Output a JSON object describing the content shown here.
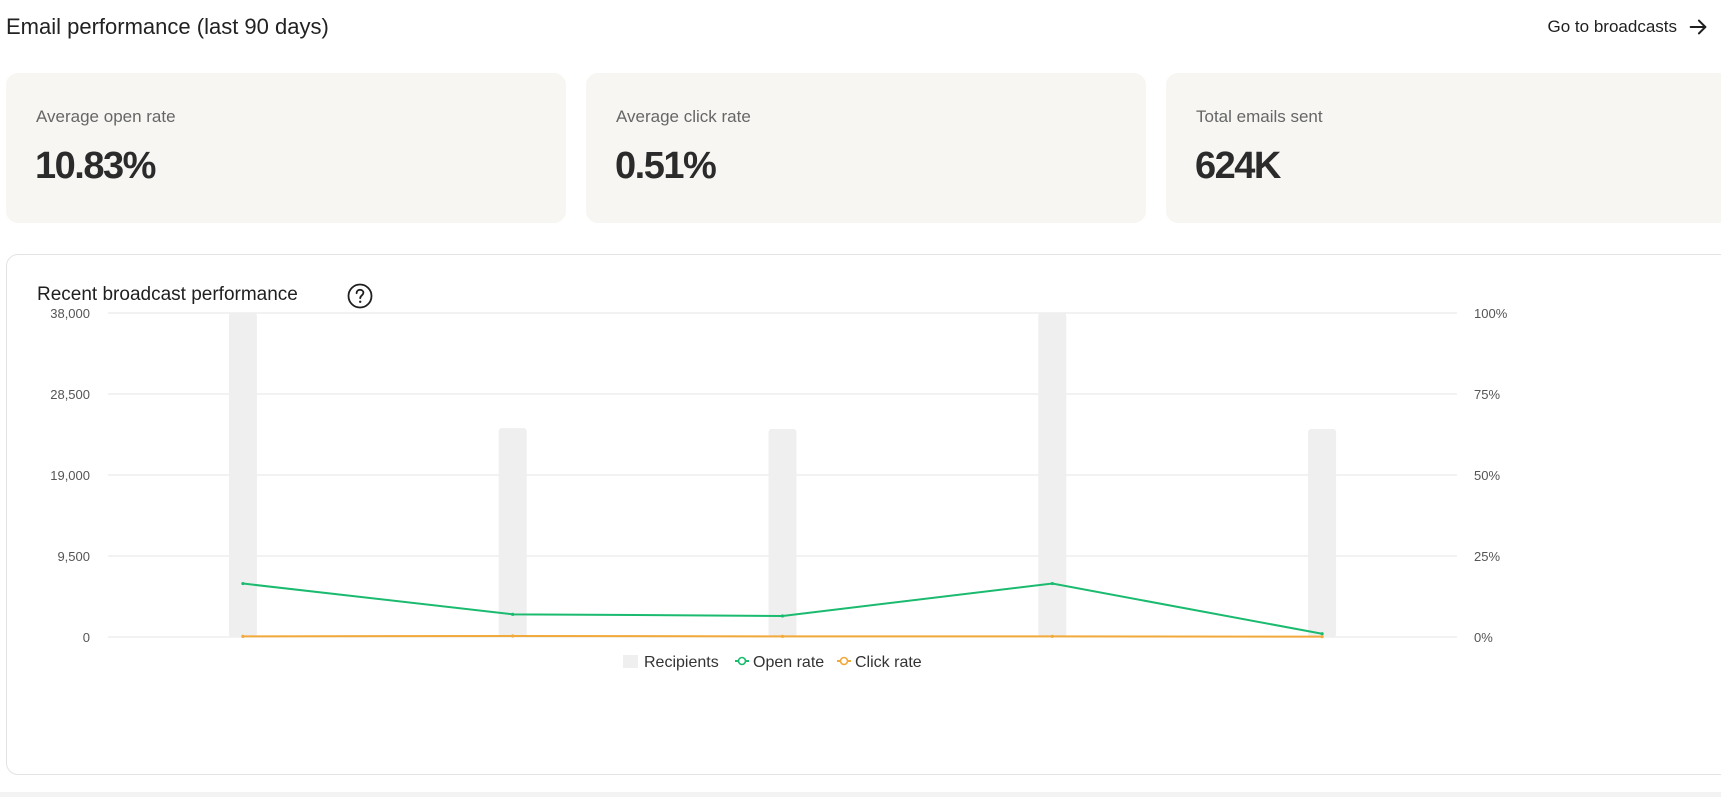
{
  "header": {
    "title": "Email performance (last 90 days)",
    "go_link": "Go to broadcasts",
    "arrow_icon": "arrow-right-icon"
  },
  "stats": [
    {
      "label": "Average open rate",
      "value": "10.83%"
    },
    {
      "label": "Average click rate",
      "value": "0.51%"
    },
    {
      "label": "Total emails sent",
      "value": "624K"
    }
  ],
  "chart_card": {
    "title": "Recent broadcast performance",
    "help_icon": "question-circle-icon"
  },
  "colors": {
    "bar": "#efefef",
    "open_rate": "#1aba6f",
    "click_rate": "#f2a93b",
    "grid": "#e6e6e6"
  },
  "chart_data": {
    "type": "bar",
    "categories": [
      "",
      "",
      "",
      "",
      ""
    ],
    "series": [
      {
        "name": "Recipients",
        "type": "bar",
        "axis": "left",
        "values": [
          38000,
          24500,
          24400,
          38000,
          24400
        ]
      },
      {
        "name": "Open rate",
        "type": "line",
        "axis": "right",
        "values": [
          16.5,
          7,
          6.5,
          16.5,
          1
        ]
      },
      {
        "name": "Click rate",
        "type": "line",
        "axis": "right",
        "values": [
          0.2,
          0.3,
          0.2,
          0.2,
          0.1
        ]
      }
    ],
    "y_left": {
      "ticks": [
        "38,000",
        "28,500",
        "19,000",
        "9,500",
        "0"
      ],
      "lim": [
        0,
        38000
      ]
    },
    "y_right": {
      "ticks": [
        "100%",
        "75%",
        "50%",
        "25%",
        "0%"
      ],
      "lim": [
        0,
        100
      ]
    },
    "grid": true,
    "legend_position": "bottom-center"
  }
}
